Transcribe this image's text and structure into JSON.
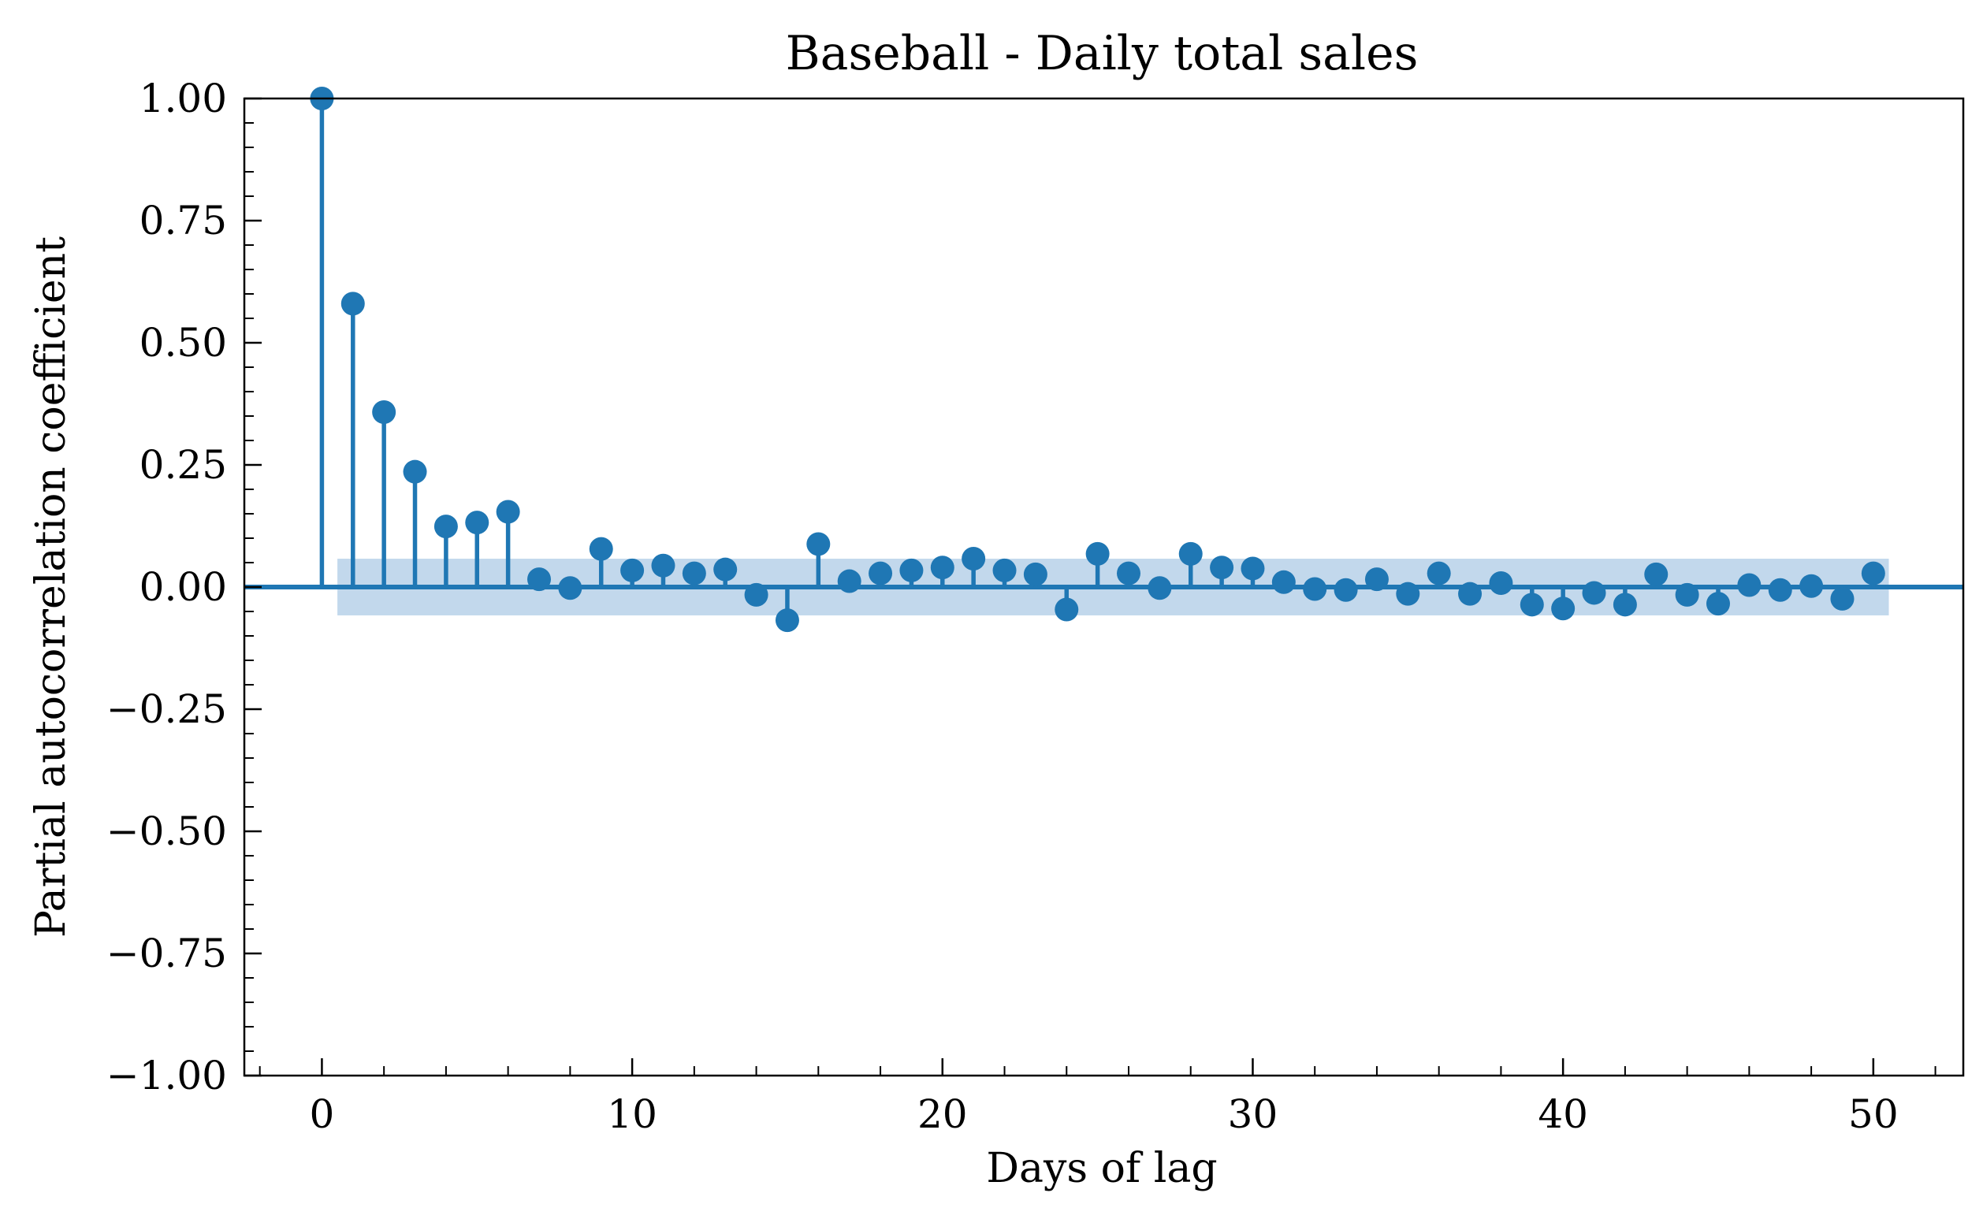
{
  "chart_data": {
    "type": "scatter",
    "title": "Baseball - Daily total sales",
    "xlabel": "Days of lag",
    "ylabel": "Partial autocorrelation coefficient",
    "xlim": [
      -2.5,
      52.9
    ],
    "ylim": [
      -1.0,
      1.0
    ],
    "x_ticks": [
      0,
      10,
      20,
      30,
      40,
      50
    ],
    "x_tick_labels": [
      "0",
      "10",
      "20",
      "30",
      "40",
      "50"
    ],
    "y_ticks": [
      1.0,
      0.75,
      0.5,
      0.25,
      0.0,
      -0.25,
      -0.5,
      -0.75,
      -1.0
    ],
    "y_tick_labels": [
      "1.00",
      "0.75",
      "0.50",
      "0.25",
      "0.00",
      "−0.25",
      "−0.50",
      "−0.75",
      "−1.00"
    ],
    "confidence_band": {
      "x_range": [
        0.5,
        50.5
      ],
      "lower": -0.058,
      "upper": 0.058
    },
    "grid": false,
    "colors": {
      "stem": "#1f77b4",
      "marker": "#1f77b4",
      "band": "#aecbe6"
    },
    "series": [
      {
        "x": [
          0,
          1,
          2,
          3,
          4,
          5,
          6,
          7,
          8,
          9,
          10,
          11,
          12,
          13,
          14,
          15,
          16,
          17,
          18,
          19,
          20,
          21,
          22,
          23,
          24,
          25,
          26,
          27,
          28,
          29,
          30,
          31,
          32,
          33,
          34,
          35,
          36,
          37,
          38,
          39,
          40,
          41,
          42,
          43,
          44,
          45,
          46,
          47,
          48,
          49,
          50
        ],
        "values": [
          1.0,
          0.58,
          0.358,
          0.236,
          0.124,
          0.132,
          0.154,
          0.016,
          -0.002,
          0.078,
          0.034,
          0.044,
          0.028,
          0.036,
          -0.016,
          -0.068,
          0.088,
          0.012,
          0.028,
          0.034,
          0.04,
          0.058,
          0.034,
          0.026,
          -0.046,
          0.068,
          0.028,
          -0.002,
          0.068,
          0.04,
          0.038,
          0.01,
          -0.004,
          -0.006,
          0.016,
          -0.014,
          0.028,
          -0.014,
          0.008,
          -0.036,
          -0.044,
          -0.012,
          -0.036,
          0.026,
          -0.016,
          -0.034,
          0.004,
          -0.006,
          0.002,
          -0.024,
          0.028
        ]
      }
    ]
  }
}
